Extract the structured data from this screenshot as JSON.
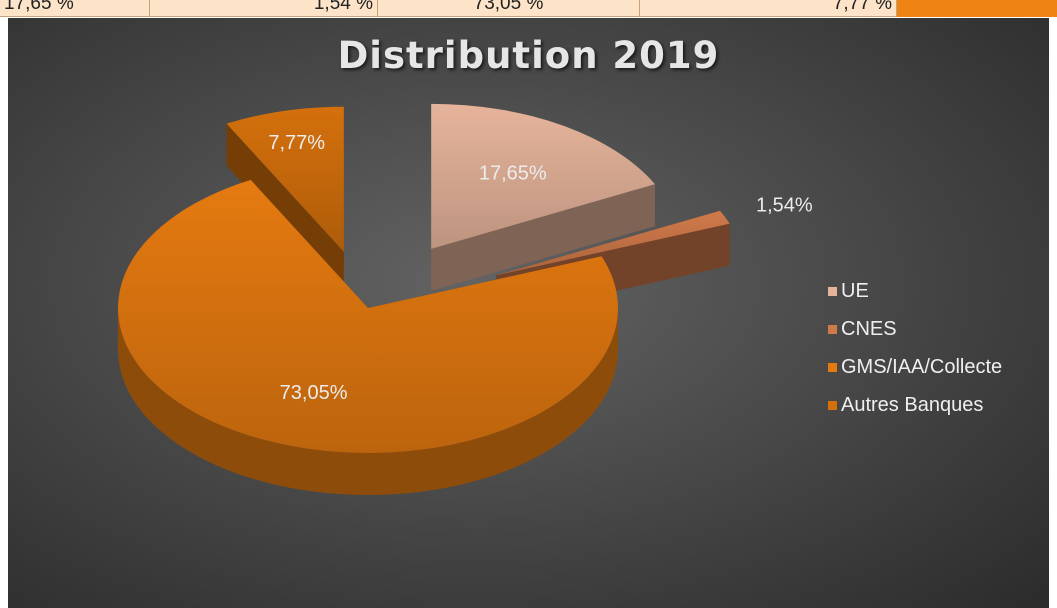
{
  "top_table": {
    "cells": [
      "17,65 %",
      "1,54 %",
      "73,05 %",
      "7,77 %"
    ]
  },
  "chart_data": {
    "type": "pie",
    "title": "Distribution 2019",
    "categories": [
      "UE",
      "CNES",
      "GMS/IAA/Collecte",
      "Autres Banques"
    ],
    "values": [
      17.65,
      1.54,
      73.05,
      7.77
    ],
    "labels": [
      "17,65%",
      "1,54%",
      "73,05%",
      "7,77%"
    ],
    "colors": [
      "#e6b49b",
      "#d07a4a",
      "#e57a10",
      "#d4700c"
    ],
    "legend_position": "right",
    "style": "3d-exploded"
  }
}
